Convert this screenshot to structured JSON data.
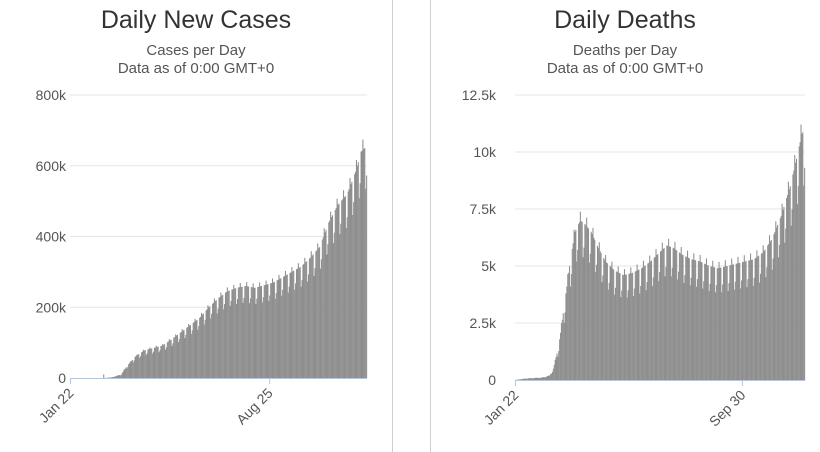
{
  "colors": {
    "bar": "#8f8f8f",
    "grid": "#e6e6e6",
    "axis": "#b8c6dc",
    "divider": "#cfcfcf"
  },
  "chart_data": [
    {
      "type": "bar",
      "title": "Daily New Cases",
      "subtitle": "Cases per Day",
      "subtitle2": "Data as of 0:00 GMT+0",
      "xlabel": "",
      "ylabel": "",
      "ylim": [
        0,
        800000
      ],
      "y_ticks": [
        {
          "value": 0,
          "label": "0"
        },
        {
          "value": 200000,
          "label": "200k"
        },
        {
          "value": 400000,
          "label": "400k"
        },
        {
          "value": 600000,
          "label": "600k"
        },
        {
          "value": 800000,
          "label": "800k"
        }
      ],
      "x_tick_labels": [
        {
          "index": 0,
          "label": "Jan 22"
        },
        {
          "index": 216,
          "label": "Aug 25"
        }
      ],
      "grid": true,
      "legend": "none",
      "daily_values": {
        "start_label": "Jan 22",
        "count": 322,
        "keypoints": [
          [
            0,
            0
          ],
          [
            35,
            0
          ],
          [
            36,
            10000
          ],
          [
            37,
            0
          ],
          [
            45,
            2000
          ],
          [
            55,
            10000
          ],
          [
            60,
            30000
          ],
          [
            70,
            60000
          ],
          [
            80,
            78000
          ],
          [
            90,
            85000
          ],
          [
            100,
            92000
          ],
          [
            110,
            110000
          ],
          [
            120,
            130000
          ],
          [
            130,
            150000
          ],
          [
            140,
            170000
          ],
          [
            150,
            200000
          ],
          [
            160,
            225000
          ],
          [
            170,
            245000
          ],
          [
            180,
            255000
          ],
          [
            190,
            260000
          ],
          [
            200,
            255000
          ],
          [
            210,
            262000
          ],
          [
            220,
            270000
          ],
          [
            230,
            285000
          ],
          [
            240,
            300000
          ],
          [
            250,
            315000
          ],
          [
            260,
            340000
          ],
          [
            270,
            370000
          ],
          [
            280,
            440000
          ],
          [
            290,
            490000
          ],
          [
            300,
            520000
          ],
          [
            310,
            590000
          ],
          [
            315,
            640000
          ],
          [
            321,
            655000
          ]
        ],
        "weekly_variation": 0.18
      }
    },
    {
      "type": "bar",
      "title": "Daily Deaths",
      "subtitle": "Deaths per Day",
      "subtitle2": "Data as of 0:00 GMT+0",
      "xlabel": "",
      "ylabel": "",
      "ylim": [
        0,
        12500
      ],
      "y_ticks": [
        {
          "value": 0,
          "label": "0"
        },
        {
          "value": 2500,
          "label": "2.5k"
        },
        {
          "value": 5000,
          "label": "5k"
        },
        {
          "value": 7500,
          "label": "7.5k"
        },
        {
          "value": 10000,
          "label": "10k"
        },
        {
          "value": 12500,
          "label": "12.5k"
        }
      ],
      "x_tick_labels": [
        {
          "index": 0,
          "label": "Jan 22"
        },
        {
          "index": 252,
          "label": "Sep 30"
        }
      ],
      "grid": true,
      "legend": "none",
      "daily_values": {
        "start_label": "Jan 22",
        "count": 322,
        "keypoints": [
          [
            0,
            0
          ],
          [
            10,
            60
          ],
          [
            20,
            90
          ],
          [
            30,
            110
          ],
          [
            38,
            200
          ],
          [
            42,
            500
          ],
          [
            48,
            1500
          ],
          [
            55,
            3500
          ],
          [
            60,
            5000
          ],
          [
            66,
            6500
          ],
          [
            72,
            7000
          ],
          [
            78,
            6800
          ],
          [
            84,
            6500
          ],
          [
            92,
            5800
          ],
          [
            100,
            5200
          ],
          [
            110,
            4800
          ],
          [
            120,
            4600
          ],
          [
            130,
            4700
          ],
          [
            140,
            4900
          ],
          [
            150,
            5200
          ],
          [
            160,
            5600
          ],
          [
            168,
            5900
          ],
          [
            175,
            5800
          ],
          [
            185,
            5500
          ],
          [
            195,
            5300
          ],
          [
            205,
            5200
          ],
          [
            215,
            5000
          ],
          [
            225,
            4900
          ],
          [
            235,
            5000
          ],
          [
            245,
            5100
          ],
          [
            255,
            5200
          ],
          [
            265,
            5300
          ],
          [
            275,
            5600
          ],
          [
            285,
            6200
          ],
          [
            295,
            7200
          ],
          [
            305,
            8500
          ],
          [
            312,
            9700
          ],
          [
            318,
            10800
          ],
          [
            321,
            11000
          ]
        ],
        "weekly_variation": 0.22
      }
    }
  ]
}
